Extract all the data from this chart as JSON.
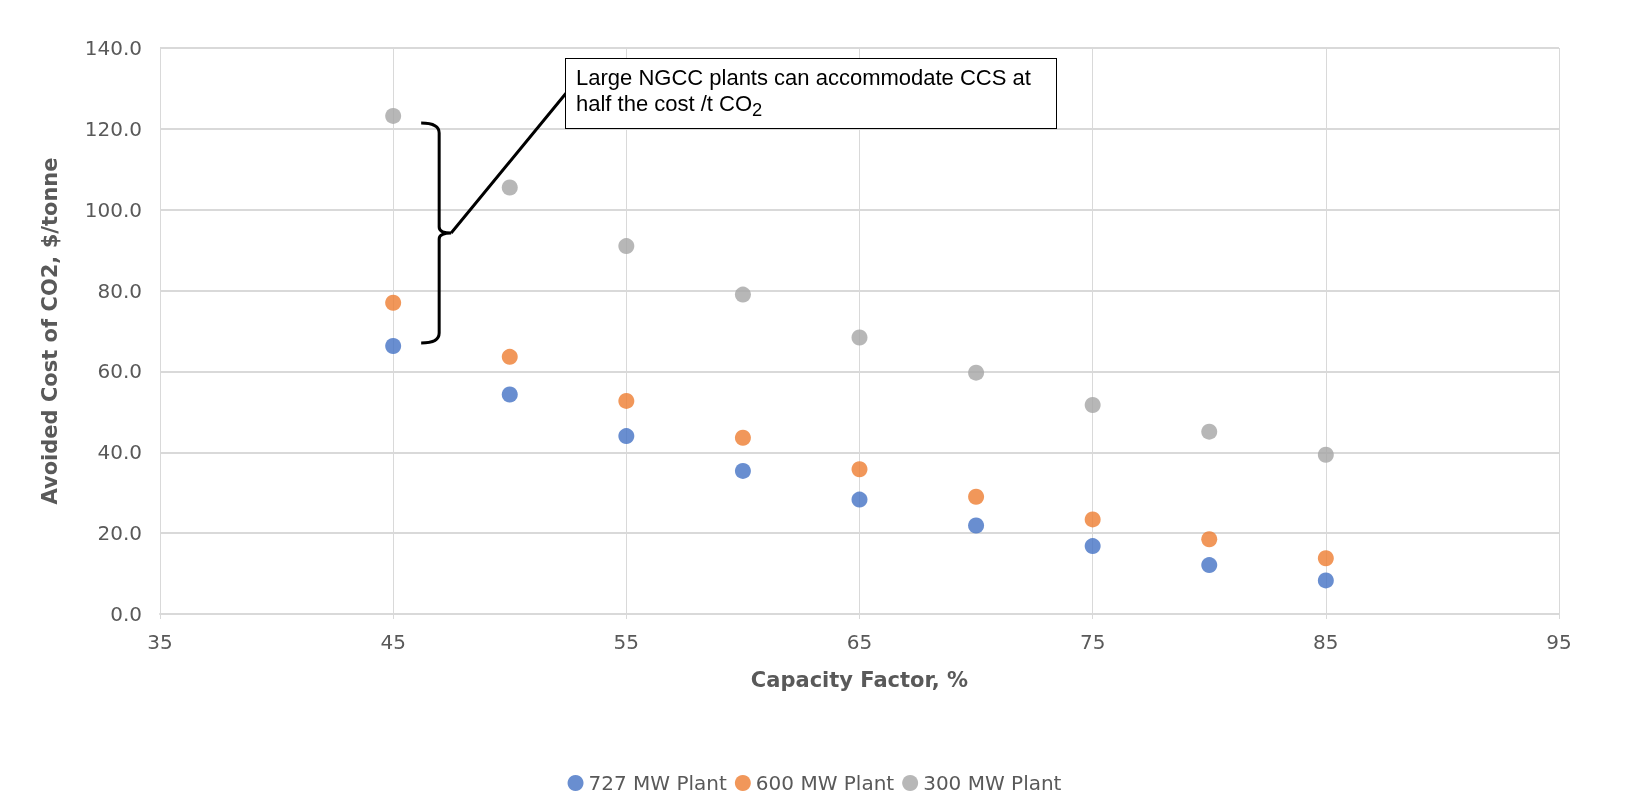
{
  "chart_data": {
    "type": "scatter",
    "xlabel": "Capacity Factor, %",
    "ylabel": "Avoided Cost of CO2, $/tonne",
    "x": [
      45,
      50,
      55,
      60,
      65,
      70,
      75,
      80,
      85
    ],
    "series": [
      {
        "name": "727 MW Plant",
        "color": "#4472c4",
        "values": [
          66.3,
          54.3,
          44.0,
          35.4,
          28.3,
          21.9,
          16.8,
          12.1,
          8.3
        ]
      },
      {
        "name": "600 MW Plant",
        "color": "#ed7d31",
        "values": [
          77.0,
          63.6,
          52.7,
          43.6,
          35.8,
          29.0,
          23.4,
          18.5,
          13.8
        ]
      },
      {
        "name": "300 MW Plant",
        "color": "#a5a5a5",
        "values": [
          123.2,
          105.5,
          91.0,
          79.0,
          68.4,
          59.7,
          51.7,
          45.1,
          39.4
        ]
      }
    ],
    "xlim": [
      35,
      95
    ],
    "xticks": [
      35,
      45,
      55,
      65,
      75,
      85,
      95
    ],
    "ylim": [
      0,
      140
    ],
    "yticks": [
      {
        "value": 0,
        "label": "0.0"
      },
      {
        "value": 20,
        "label": "20.0"
      },
      {
        "value": 40,
        "label": "40.0"
      },
      {
        "value": 60,
        "label": "60.0"
      },
      {
        "value": 80,
        "label": "80.0"
      },
      {
        "value": 100,
        "label": "100.0"
      },
      {
        "value": 120,
        "label": "120.0"
      },
      {
        "value": 140,
        "label": "140.0"
      }
    ],
    "annotations": [
      "Large NGCC plants can accommodate CCS at half the cost /t CO$_{2}$"
    ],
    "grid": true,
    "legend": "bottom",
    "marker": "circle"
  }
}
